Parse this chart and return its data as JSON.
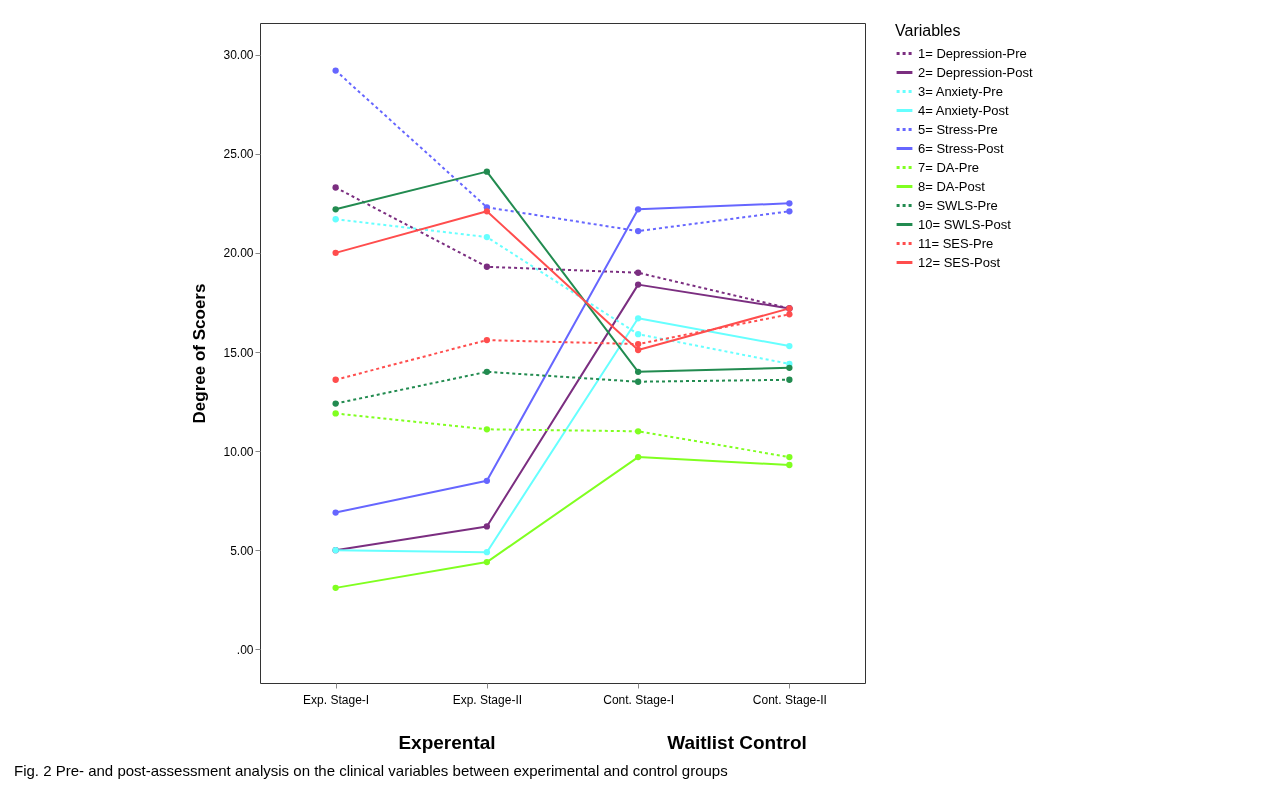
{
  "chart_data": {
    "type": "line",
    "ylabel": "Degree of Scoers",
    "legend_title": "Variables",
    "categories": [
      "Exp. Stage-I",
      "Exp. Stage-II",
      "Cont. Stage-I",
      "Cont. Stage-II"
    ],
    "ylim": [
      -1.7,
      31.6
    ],
    "yticks": [
      {
        "value": 0,
        "label": ".00"
      },
      {
        "value": 5,
        "label": "5.00"
      },
      {
        "value": 10,
        "label": "10.00"
      },
      {
        "value": 15,
        "label": "15.00"
      },
      {
        "value": 20,
        "label": "20.00"
      },
      {
        "value": 25,
        "label": "25.00"
      },
      {
        "value": 30,
        "label": "30.00"
      }
    ],
    "grid": false,
    "legend": "right",
    "marker": "circle",
    "series": [
      {
        "name": "1= Depression-Pre",
        "color": "#7b2e80",
        "line_style": "dotted",
        "values": [
          23.3,
          19.3,
          19.0,
          17.2
        ]
      },
      {
        "name": "2= Depression-Post",
        "color": "#7b2e80",
        "line_style": "solid",
        "values": [
          5.0,
          6.2,
          18.4,
          17.2
        ]
      },
      {
        "name": "3= Anxiety-Pre",
        "color": "#66ffff",
        "line_style": "dotted",
        "values": [
          21.7,
          20.8,
          15.9,
          14.4
        ]
      },
      {
        "name": "4= Anxiety-Post",
        "color": "#66ffff",
        "line_style": "solid",
        "values": [
          5.0,
          4.9,
          16.7,
          15.3
        ]
      },
      {
        "name": "5= Stress-Pre",
        "color": "#6666ff",
        "line_style": "dotted",
        "values": [
          29.2,
          22.3,
          21.1,
          22.1
        ]
      },
      {
        "name": "6= Stress-Post",
        "color": "#6666ff",
        "line_style": "solid",
        "values": [
          6.9,
          8.5,
          22.2,
          22.5
        ]
      },
      {
        "name": "7= DA-Pre",
        "color": "#80ff20",
        "line_style": "dotted",
        "values": [
          11.9,
          11.1,
          11.0,
          9.7
        ]
      },
      {
        "name": "8= DA-Post",
        "color": "#80ff20",
        "line_style": "solid",
        "values": [
          3.1,
          4.4,
          9.7,
          9.3
        ]
      },
      {
        "name": "9= SWLS-Pre",
        "color": "#228b50",
        "line_style": "dotted",
        "values": [
          12.4,
          14.0,
          13.5,
          13.6
        ]
      },
      {
        "name": "10= SWLS-Post",
        "color": "#228b50",
        "line_style": "solid",
        "values": [
          22.2,
          24.1,
          14.0,
          14.2
        ]
      },
      {
        "name": "11= SES-Pre",
        "color": "#ff4d4d",
        "line_style": "dotted",
        "values": [
          13.6,
          15.6,
          15.4,
          16.9
        ]
      },
      {
        "name": "12= SES-Post",
        "color": "#ff4d4d",
        "line_style": "solid",
        "values": [
          20.0,
          22.1,
          15.1,
          17.2
        ]
      }
    ],
    "annotations": [
      "Experental",
      "Waitlist Control",
      "Fig. 2 Pre- and post-assessment analysis on the clinical variables between experimental and control groups"
    ]
  }
}
